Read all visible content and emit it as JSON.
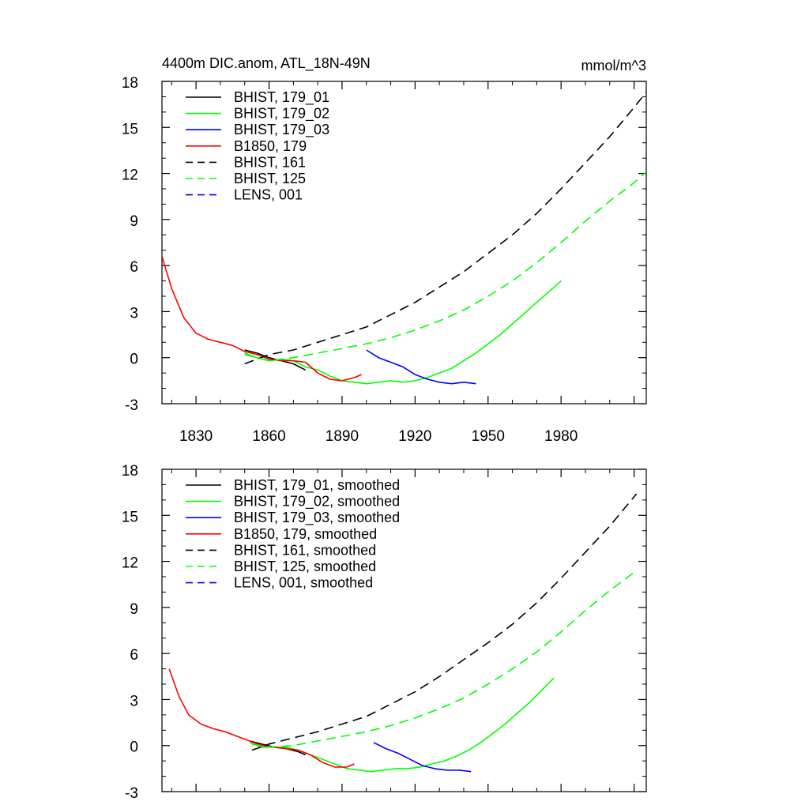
{
  "chart_data": [
    {
      "type": "line",
      "title": "4400m DIC.anom, ATL_18N-49N",
      "units": "mmol/m^3",
      "xlim": [
        1816,
        2015
      ],
      "ylim": [
        -3,
        18
      ],
      "xticks": [
        1830,
        1860,
        1890,
        1920,
        1950,
        1980
      ],
      "xtick_labels": [
        "1830",
        "1860",
        "1890",
        "1920",
        "1950",
        "1980"
      ],
      "yticks": [
        -3,
        0,
        3,
        6,
        9,
        12,
        15,
        18
      ],
      "ytick_labels": [
        "-3",
        "0",
        "3",
        "6",
        "9",
        "12",
        "15",
        "18"
      ],
      "legend_position": "top-left",
      "series": [
        {
          "name": "BHIST, 179_01",
          "color": "#000000",
          "dash": "solid",
          "x": [
            1850,
            1855,
            1860,
            1865,
            1870,
            1875
          ],
          "y": [
            0.5,
            0.3,
            0.0,
            -0.2,
            -0.4,
            -0.8
          ]
        },
        {
          "name": "BHIST, 179_02",
          "color": "#00ff00",
          "dash": "solid",
          "x": [
            1850,
            1855,
            1860,
            1865,
            1870,
            1875,
            1880,
            1885,
            1890,
            1895,
            1900,
            1905,
            1910,
            1915,
            1920,
            1925,
            1930,
            1935,
            1940,
            1945,
            1950,
            1955,
            1960,
            1965,
            1970,
            1975,
            1980
          ],
          "y": [
            0.3,
            0.0,
            -0.2,
            -0.1,
            -0.2,
            -0.6,
            -0.8,
            -1.2,
            -1.5,
            -1.6,
            -1.7,
            -1.6,
            -1.5,
            -1.6,
            -1.5,
            -1.3,
            -1.0,
            -0.7,
            -0.2,
            0.3,
            0.9,
            1.5,
            2.2,
            2.9,
            3.6,
            4.3,
            5.0
          ]
        },
        {
          "name": "BHIST, 179_03",
          "color": "#0000ff",
          "dash": "solid",
          "x": [
            1900,
            1905,
            1910,
            1915,
            1920,
            1925,
            1930,
            1935,
            1940,
            1945
          ],
          "y": [
            0.5,
            0.0,
            -0.3,
            -0.6,
            -1.1,
            -1.4,
            -1.6,
            -1.7,
            -1.6,
            -1.7
          ]
        },
        {
          "name": "B1850, 179",
          "color": "#ff0000",
          "dash": "solid",
          "x": [
            1816,
            1820,
            1825,
            1830,
            1835,
            1840,
            1845,
            1850,
            1855,
            1860,
            1865,
            1870,
            1875,
            1880,
            1885,
            1890,
            1895,
            1898
          ],
          "y": [
            6.6,
            4.5,
            2.6,
            1.6,
            1.2,
            1.0,
            0.8,
            0.4,
            0.2,
            -0.1,
            -0.2,
            -0.2,
            -0.3,
            -1.0,
            -1.4,
            -1.5,
            -1.3,
            -1.1
          ]
        },
        {
          "name": "BHIST, 161",
          "color": "#000000",
          "dash": "dashed",
          "x": [
            1850,
            1860,
            1870,
            1880,
            1890,
            1900,
            1910,
            1920,
            1930,
            1940,
            1950,
            1960,
            1970,
            1980,
            1990,
            2000,
            2010,
            2015
          ],
          "y": [
            -0.4,
            0.2,
            0.5,
            1.0,
            1.5,
            2.0,
            2.8,
            3.6,
            4.6,
            5.6,
            6.8,
            8.0,
            9.4,
            11.0,
            12.7,
            14.4,
            16.3,
            17.3
          ]
        },
        {
          "name": "BHIST, 125",
          "color": "#00ff00",
          "dash": "dashed",
          "x": [
            1850,
            1860,
            1870,
            1880,
            1890,
            1900,
            1910,
            1920,
            1930,
            1940,
            1950,
            1960,
            1970,
            1980,
            1990,
            2000,
            2010,
            2015
          ],
          "y": [
            0.2,
            -0.2,
            0.0,
            0.3,
            0.6,
            0.9,
            1.3,
            1.8,
            2.4,
            3.1,
            4.0,
            5.0,
            6.2,
            7.5,
            8.9,
            10.2,
            11.4,
            12.1
          ]
        },
        {
          "name": "LENS, 001",
          "color": "#0000ff",
          "dash": "dashed",
          "x": [],
          "y": []
        }
      ]
    },
    {
      "type": "line",
      "title": "",
      "units": "",
      "xlim": [
        1816,
        2015
      ],
      "ylim": [
        -3,
        18
      ],
      "xticks": [
        1830,
        1860,
        1890,
        1920,
        1950,
        1980
      ],
      "xtick_labels": [],
      "yticks": [
        -3,
        0,
        3,
        6,
        9,
        12,
        15,
        18
      ],
      "ytick_labels": [
        "-3",
        "0",
        "3",
        "6",
        "9",
        "12",
        "15",
        "18"
      ],
      "legend_position": "top-left",
      "series": [
        {
          "name": "BHIST, 179_01, smoothed",
          "color": "#000000",
          "dash": "solid",
          "x": [
            1852,
            1857,
            1862,
            1867,
            1872,
            1875
          ],
          "y": [
            0.3,
            0.1,
            -0.1,
            -0.2,
            -0.4,
            -0.6
          ]
        },
        {
          "name": "BHIST, 179_02, smoothed",
          "color": "#00ff00",
          "dash": "solid",
          "x": [
            1852,
            1857,
            1862,
            1867,
            1872,
            1877,
            1882,
            1887,
            1892,
            1897,
            1902,
            1907,
            1912,
            1917,
            1922,
            1927,
            1932,
            1937,
            1942,
            1947,
            1952,
            1957,
            1962,
            1967,
            1972,
            1977
          ],
          "y": [
            0.2,
            -0.1,
            -0.1,
            -0.1,
            -0.3,
            -0.6,
            -0.9,
            -1.2,
            -1.5,
            -1.6,
            -1.7,
            -1.6,
            -1.5,
            -1.5,
            -1.4,
            -1.2,
            -1.0,
            -0.7,
            -0.3,
            0.2,
            0.8,
            1.4,
            2.1,
            2.8,
            3.6,
            4.4
          ]
        },
        {
          "name": "BHIST, 179_03, smoothed",
          "color": "#0000ff",
          "dash": "solid",
          "x": [
            1903,
            1908,
            1913,
            1918,
            1923,
            1928,
            1933,
            1938,
            1943
          ],
          "y": [
            0.2,
            -0.2,
            -0.5,
            -0.9,
            -1.3,
            -1.5,
            -1.6,
            -1.6,
            -1.7
          ]
        },
        {
          "name": "B1850, 179, smoothed",
          "color": "#ff0000",
          "dash": "solid",
          "x": [
            1819,
            1823,
            1827,
            1832,
            1837,
            1842,
            1847,
            1852,
            1857,
            1862,
            1867,
            1872,
            1877,
            1882,
            1887,
            1892,
            1895
          ],
          "y": [
            5.0,
            3.2,
            2.0,
            1.4,
            1.1,
            0.9,
            0.6,
            0.3,
            0.0,
            -0.1,
            -0.2,
            -0.3,
            -0.6,
            -1.1,
            -1.4,
            -1.4,
            -1.2
          ]
        },
        {
          "name": "BHIST, 161, smoothed",
          "color": "#000000",
          "dash": "dashed",
          "x": [
            1853,
            1860,
            1870,
            1880,
            1890,
            1900,
            1910,
            1920,
            1930,
            1940,
            1950,
            1960,
            1970,
            1980,
            1990,
            2000,
            2011
          ],
          "y": [
            -0.3,
            0.1,
            0.5,
            0.9,
            1.4,
            1.9,
            2.7,
            3.5,
            4.5,
            5.6,
            6.7,
            7.9,
            9.3,
            10.9,
            12.6,
            14.3,
            16.4
          ]
        },
        {
          "name": "BHIST, 125, smoothed",
          "color": "#00ff00",
          "dash": "dashed",
          "x": [
            1853,
            1860,
            1870,
            1880,
            1890,
            1900,
            1910,
            1920,
            1930,
            1940,
            1950,
            1960,
            1970,
            1980,
            1990,
            2000,
            2011
          ],
          "y": [
            0.1,
            -0.1,
            0.0,
            0.3,
            0.6,
            0.9,
            1.3,
            1.8,
            2.4,
            3.1,
            4.0,
            5.0,
            6.1,
            7.4,
            8.8,
            10.1,
            11.4
          ]
        },
        {
          "name": "LENS, 001, smoothed",
          "color": "#0000ff",
          "dash": "dashed",
          "x": [],
          "y": []
        }
      ]
    }
  ]
}
